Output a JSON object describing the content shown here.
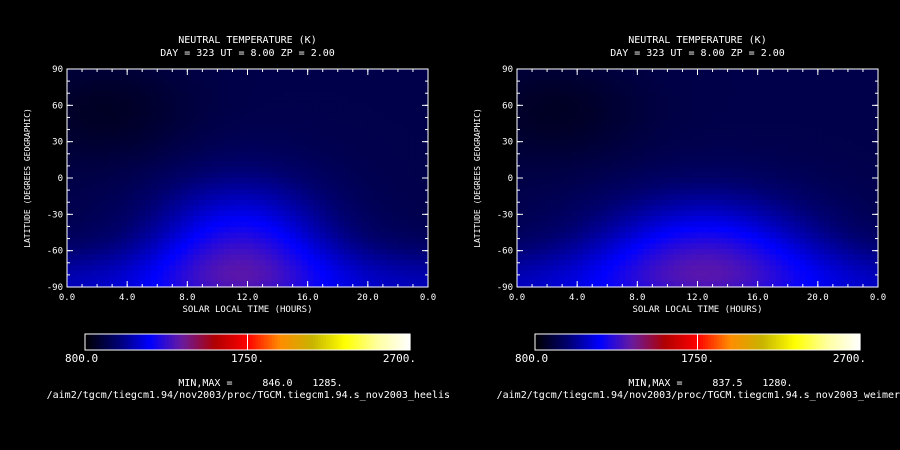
{
  "chart_data": [
    {
      "type": "heatmap",
      "title": "NEUTRAL TEMPERATURE (K)",
      "subtitle": "DAY = 323  UT =  8.00  ZP =   2.00",
      "xlabel": "SOLAR LOCAL TIME (HOURS)",
      "ylabel": "LATITUDE (DEGREES GEOGRAPHIC)",
      "xticks": [
        "0.0",
        "4.0",
        "8.0",
        "12.0",
        "16.0",
        "20.0",
        "0.0"
      ],
      "yticks": [
        "90",
        "60",
        "30",
        "0",
        "-30",
        "-60",
        "-90"
      ],
      "xlim": [
        0,
        24
      ],
      "ylim": [
        -90,
        90
      ],
      "colorbar": {
        "min_label": "800.0",
        "mid_label": "1750.",
        "max_label": "2700.",
        "range": [
          800,
          2700
        ]
      },
      "minmax_label": "MIN,MAX =",
      "min": "846.0",
      "max": "1285.",
      "hotspot": {
        "x": 11.5,
        "y": -62,
        "sx": 4.2,
        "sy": 40
      },
      "file_path": "/aim2/tgcm/tiegcm1.94/nov2003/proc/TGCM.tiegcm1.94.s_nov2003_heelis"
    },
    {
      "type": "heatmap",
      "title": "NEUTRAL TEMPERATURE (K)",
      "subtitle": "DAY = 323  UT =  8.00  ZP =   2.00",
      "xlabel": "SOLAR LOCAL TIME (HOURS)",
      "ylabel": "LATITUDE (DEGREES GEOGRAPHIC)",
      "xticks": [
        "0.0",
        "4.0",
        "8.0",
        "12.0",
        "16.0",
        "20.0",
        "0.0"
      ],
      "yticks": [
        "90",
        "60",
        "30",
        "0",
        "-30",
        "-60",
        "-90"
      ],
      "xlim": [
        0,
        24
      ],
      "ylim": [
        -90,
        90
      ],
      "colorbar": {
        "min_label": "800.0",
        "mid_label": "1750.",
        "max_label": "2700.",
        "range": [
          800,
          2700
        ]
      },
      "minmax_label": "MIN,MAX =",
      "min": "837.5",
      "max": "1280.",
      "hotspot": {
        "x": 12.5,
        "y": -65,
        "sx": 5.2,
        "sy": 35
      },
      "file_path": "/aim2/tgcm/tiegcm1.94/nov2003/proc/TGCM.tiegcm1.94.s_nov2003_weimer"
    }
  ],
  "colors": {
    "background": "#000000",
    "foreground": "#ffffff",
    "colormap": [
      "#000000",
      "#00006e",
      "#0000ff",
      "#6a1a9c",
      "#b00000",
      "#ff0000",
      "#ff8c00",
      "#c8b400",
      "#ffff00",
      "#ffffa0",
      "#ffffff"
    ]
  }
}
